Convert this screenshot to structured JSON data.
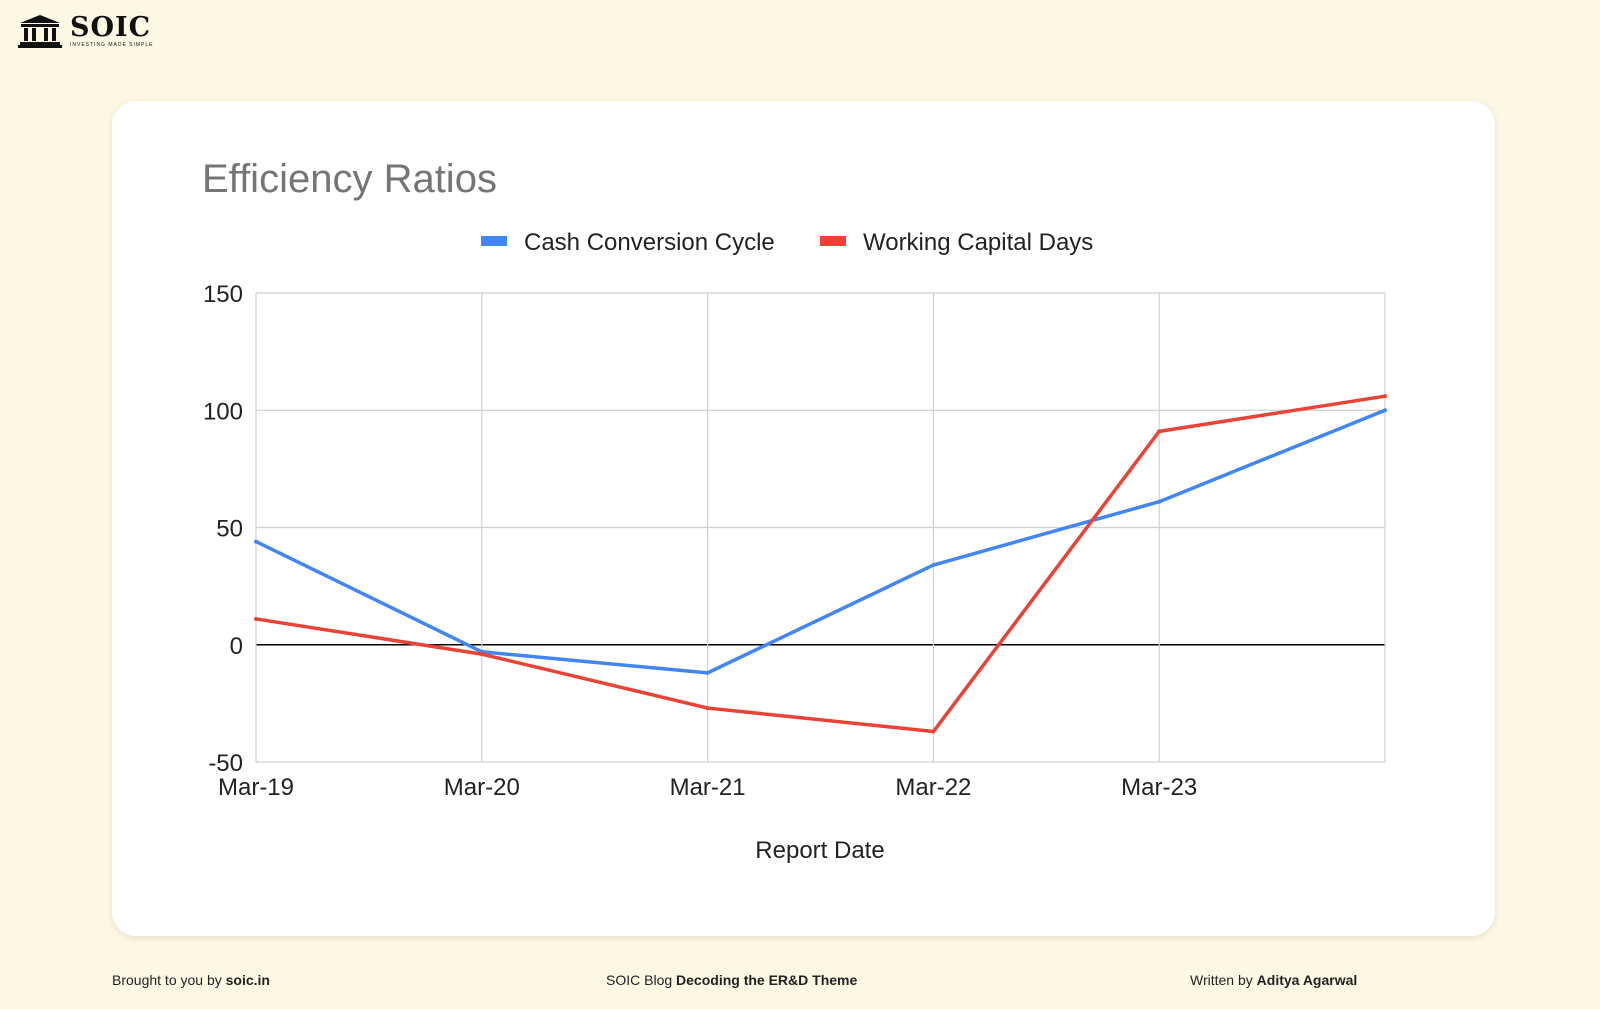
{
  "brand": {
    "name": "SOIC",
    "tagline": "INVESTING MADE SIMPLE"
  },
  "footer": {
    "left_prefix": "Brought to you by",
    "left_strong": "soic.in",
    "center_prefix": "SOIC Blog",
    "center_strong": "Decoding the ER&D Theme",
    "right_prefix": "Written by",
    "right_strong": "Aditya Agarwal"
  },
  "chart_data": {
    "type": "line",
    "title": "Efficiency Ratios",
    "xlabel": "Report Date",
    "ylabel": "",
    "categories": [
      "Mar-19",
      "Mar-20",
      "Mar-21",
      "Mar-22",
      "Mar-23",
      ""
    ],
    "ylim": [
      -50,
      150
    ],
    "yticks": [
      -50,
      0,
      50,
      100,
      150
    ],
    "grid": true,
    "legend": "top",
    "series": [
      {
        "name": "Cash Conversion Cycle",
        "color": "#4285f4",
        "values": [
          44,
          -3,
          -12,
          34,
          61,
          100
        ]
      },
      {
        "name": "Working Capital Days",
        "color": "#ea4335",
        "values": [
          11,
          -4,
          -27,
          -37,
          91,
          106
        ]
      }
    ]
  }
}
